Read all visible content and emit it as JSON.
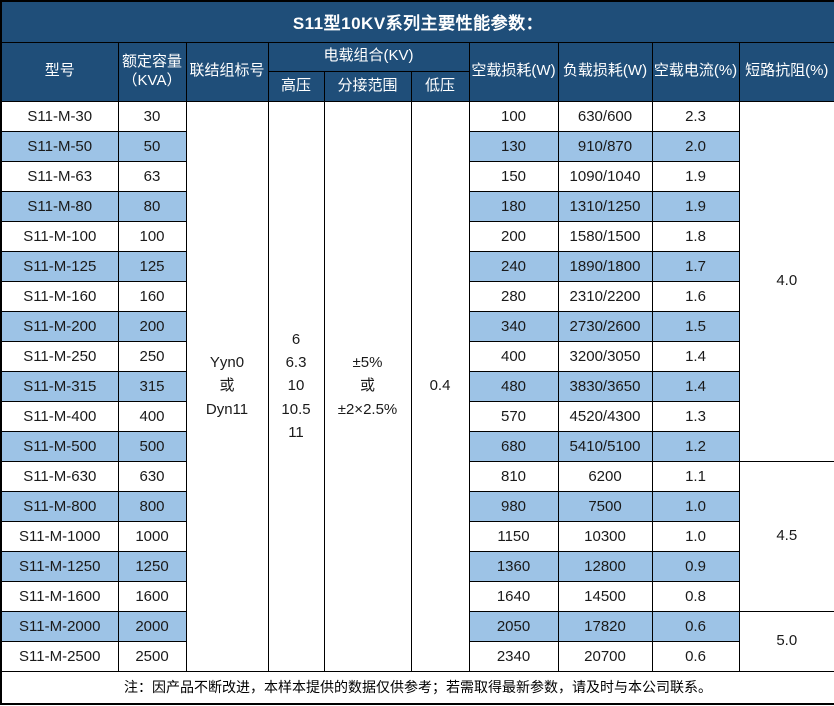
{
  "title": "S11型10KV系列主要性能参数：",
  "colors": {
    "header_bg": "#1F4E79",
    "alt_row_bg": "#9DC3E6",
    "row_bg": "#FFFFFF",
    "border": "#000000"
  },
  "header": {
    "model": "型号",
    "capacity": "额定容量\n（KVA）",
    "connection": "联结组标号",
    "voltage_group": "电载组合(KV)",
    "hv": "高压",
    "tap_range": "分接范围",
    "lv": "低压",
    "no_load_loss": "空载损耗(W)",
    "load_loss": "负载损耗(W)",
    "no_load_current": "空载电流(%)",
    "impedance": "短路抗阻(%)"
  },
  "merged": {
    "connection": "Yyn0\n或\nDyn11",
    "hv": "6\n6.3\n10\n10.5\n11",
    "tap": "±5%\n或\n±2×2.5%",
    "lv": "0.4"
  },
  "rows": [
    {
      "model": "S11-M-30",
      "capacity": "30",
      "no_load_loss": "100",
      "load_loss": "630/600",
      "no_load_current": "2.3"
    },
    {
      "model": "S11-M-50",
      "capacity": "50",
      "no_load_loss": "130",
      "load_loss": "910/870",
      "no_load_current": "2.0"
    },
    {
      "model": "S11-M-63",
      "capacity": "63",
      "no_load_loss": "150",
      "load_loss": "1090/1040",
      "no_load_current": "1.9"
    },
    {
      "model": "S11-M-80",
      "capacity": "80",
      "no_load_loss": "180",
      "load_loss": "1310/1250",
      "no_load_current": "1.9"
    },
    {
      "model": "S11-M-100",
      "capacity": "100",
      "no_load_loss": "200",
      "load_loss": "1580/1500",
      "no_load_current": "1.8"
    },
    {
      "model": "S11-M-125",
      "capacity": "125",
      "no_load_loss": "240",
      "load_loss": "1890/1800",
      "no_load_current": "1.7"
    },
    {
      "model": "S11-M-160",
      "capacity": "160",
      "no_load_loss": "280",
      "load_loss": "2310/2200",
      "no_load_current": "1.6"
    },
    {
      "model": "S11-M-200",
      "capacity": "200",
      "no_load_loss": "340",
      "load_loss": "2730/2600",
      "no_load_current": "1.5"
    },
    {
      "model": "S11-M-250",
      "capacity": "250",
      "no_load_loss": "400",
      "load_loss": "3200/3050",
      "no_load_current": "1.4"
    },
    {
      "model": "S11-M-315",
      "capacity": "315",
      "no_load_loss": "480",
      "load_loss": "3830/3650",
      "no_load_current": "1.4"
    },
    {
      "model": "S11-M-400",
      "capacity": "400",
      "no_load_loss": "570",
      "load_loss": "4520/4300",
      "no_load_current": "1.3"
    },
    {
      "model": "S11-M-500",
      "capacity": "500",
      "no_load_loss": "680",
      "load_loss": "5410/5100",
      "no_load_current": "1.2"
    },
    {
      "model": "S11-M-630",
      "capacity": "630",
      "no_load_loss": "810",
      "load_loss": "6200",
      "no_load_current": "1.1"
    },
    {
      "model": "S11-M-800",
      "capacity": "800",
      "no_load_loss": "980",
      "load_loss": "7500",
      "no_load_current": "1.0"
    },
    {
      "model": "S11-M-1000",
      "capacity": "1000",
      "no_load_loss": "1150",
      "load_loss": "10300",
      "no_load_current": "1.0"
    },
    {
      "model": "S11-M-1250",
      "capacity": "1250",
      "no_load_loss": "1360",
      "load_loss": "12800",
      "no_load_current": "0.9"
    },
    {
      "model": "S11-M-1600",
      "capacity": "1600",
      "no_load_loss": "1640",
      "load_loss": "14500",
      "no_load_current": "0.8"
    },
    {
      "model": "S11-M-2000",
      "capacity": "2000",
      "no_load_loss": "2050",
      "load_loss": "17820",
      "no_load_current": "0.6"
    },
    {
      "model": "S11-M-2500",
      "capacity": "2500",
      "no_load_loss": "2340",
      "load_loss": "20700",
      "no_load_current": "0.6"
    }
  ],
  "impedance_groups": [
    {
      "value": "4.0",
      "span": 12
    },
    {
      "value": "4.5",
      "span": 5
    },
    {
      "value": "5.0",
      "span": 2
    }
  ],
  "footnote": "注：因产品不断改进，本样本提供的数据仅供参考；若需取得最新参数，请及时与本公司联系。"
}
